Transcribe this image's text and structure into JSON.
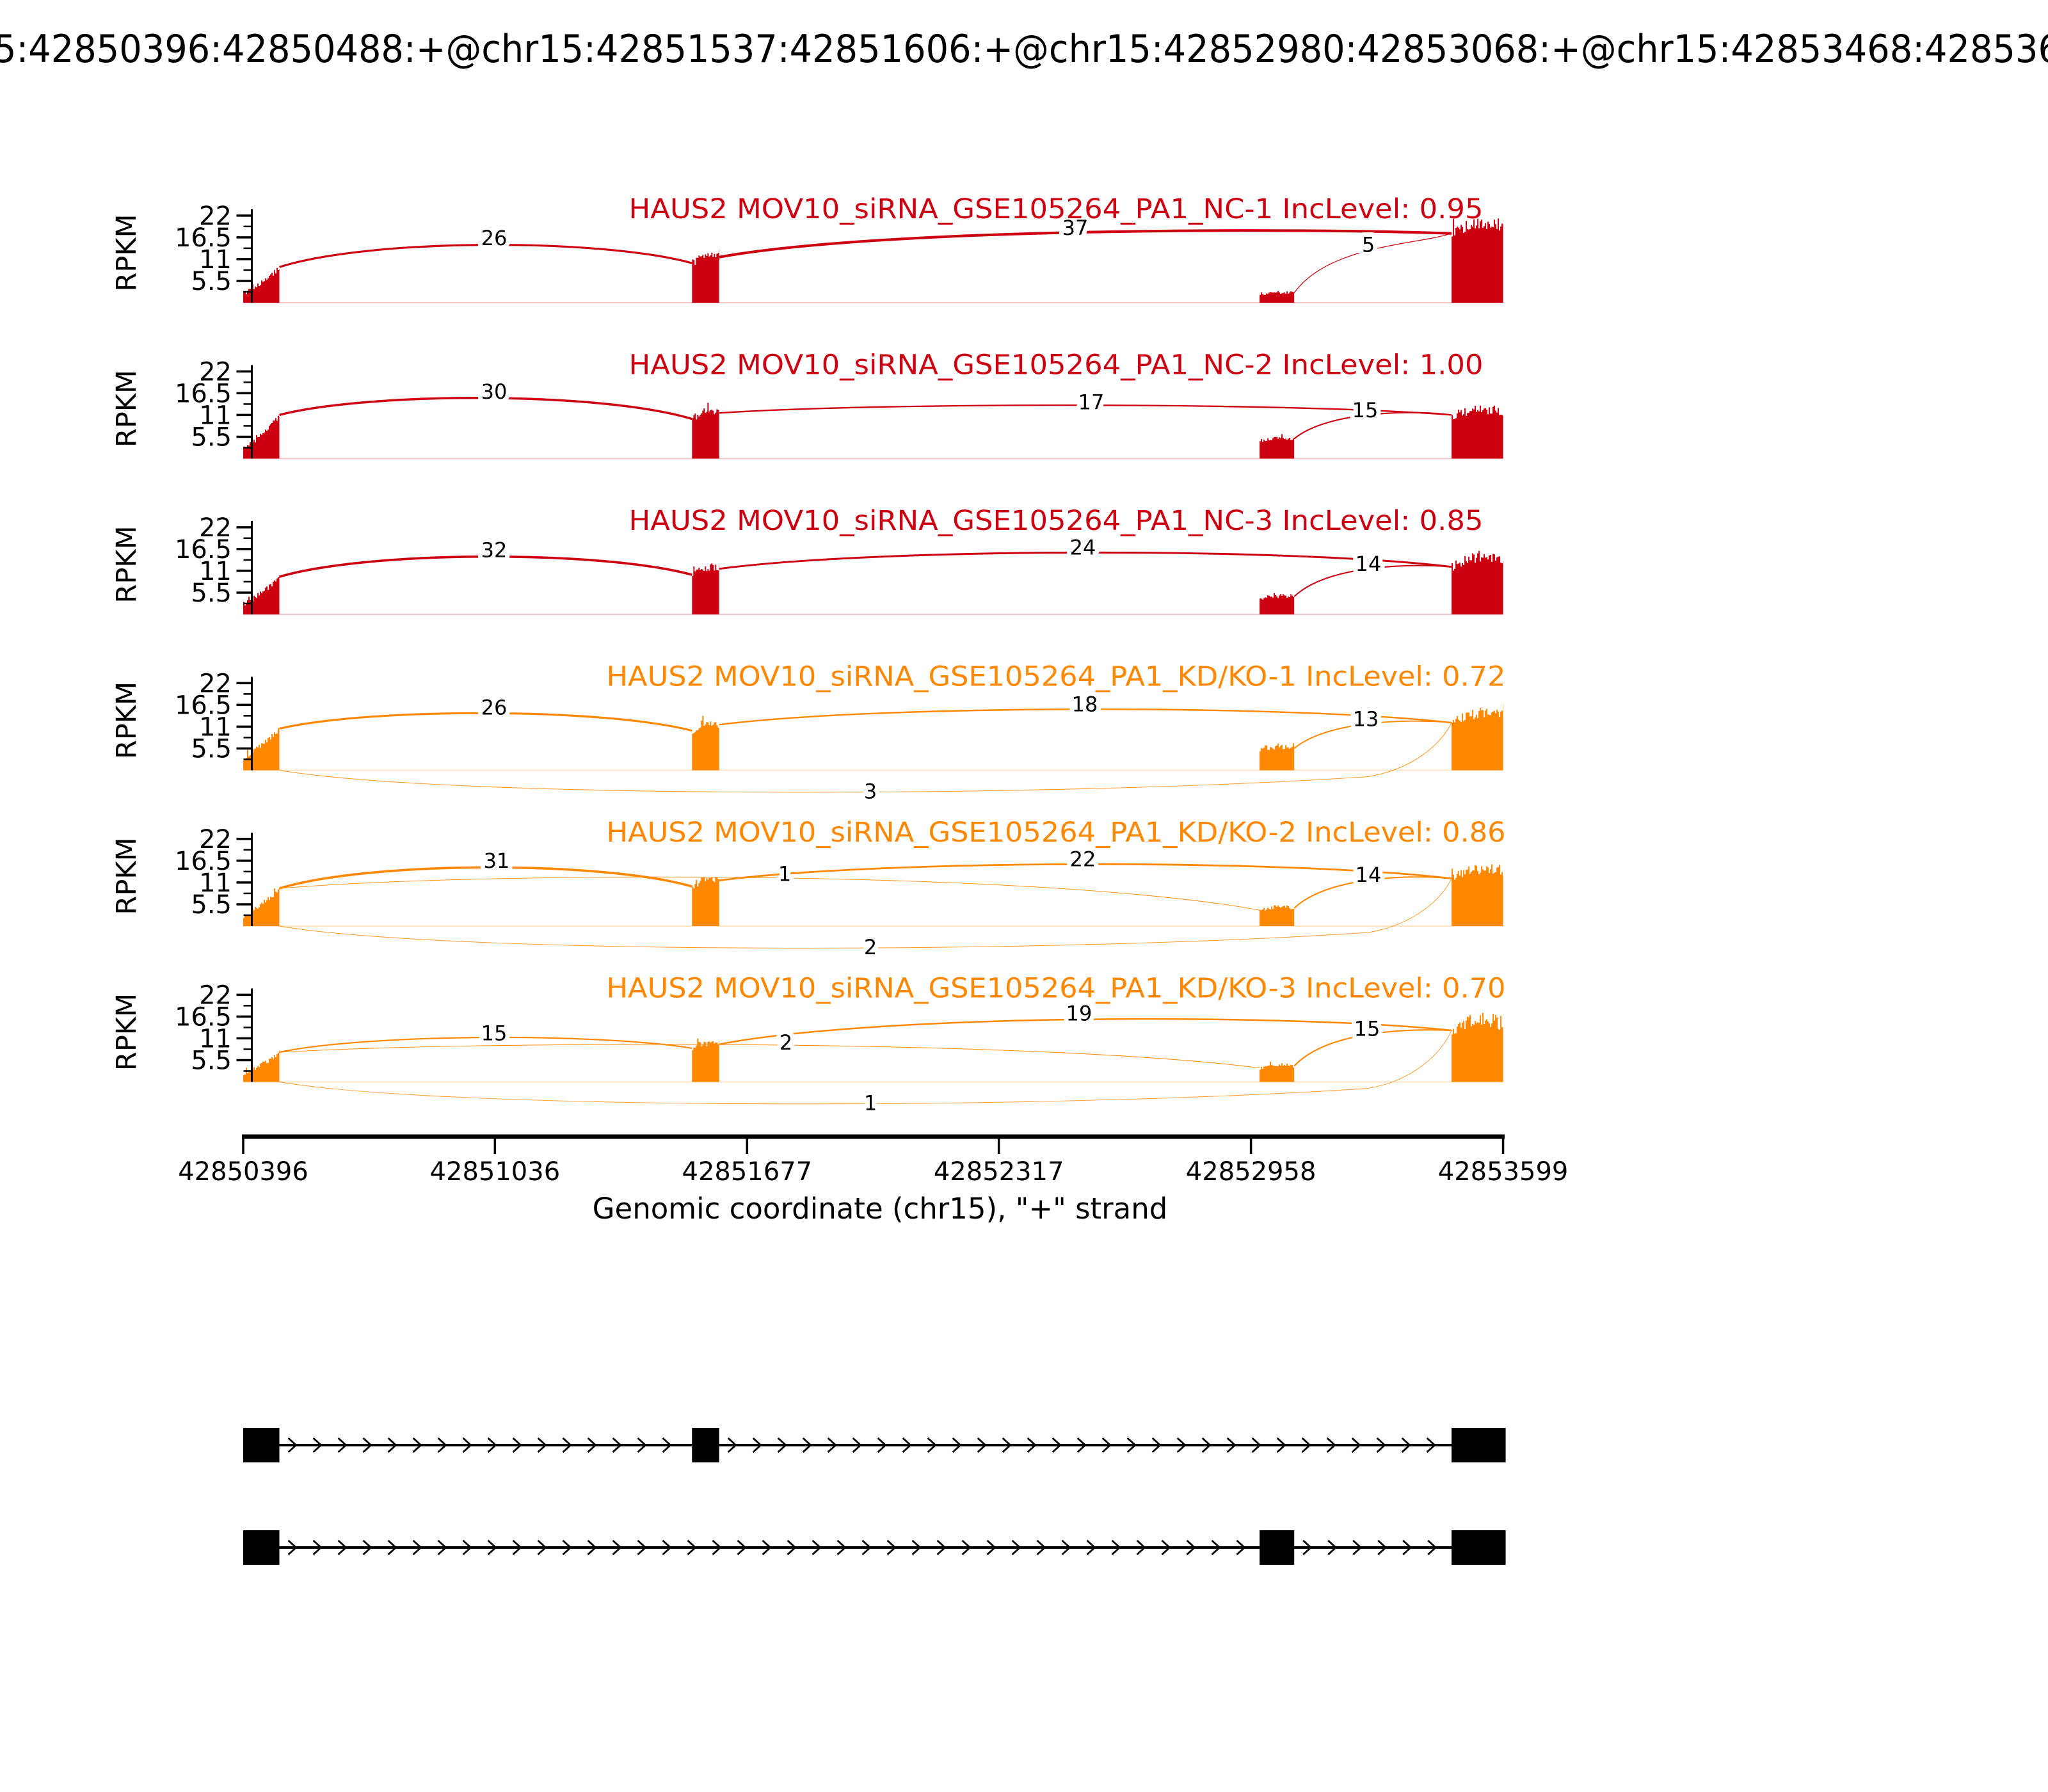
{
  "figure": {
    "top_title": "5:42850396:42850488:+@chr15:42851537:42851606:+@chr15:42852980:42853068:+@chr15:42853468:428536",
    "x_label": "Genomic coordinate (chr15), \"+\" strand",
    "y_label": "RPKM",
    "y_ticks": [
      "5.5",
      "11",
      "16.5",
      "22"
    ],
    "colors": {
      "nc": "#CC0011",
      "kd": "#FF8800"
    }
  },
  "chart_data": {
    "type": "sashimi",
    "gene": "HAUS2",
    "chromosome": "chr15",
    "strand": "+",
    "x_range": [
      42850396,
      42853599
    ],
    "x_ticks": [
      42850396,
      42851036,
      42851677,
      42852317,
      42852958,
      42853599
    ],
    "y_range_rpkm": [
      0,
      22
    ],
    "y_tick_values": [
      5.5,
      11,
      16.5,
      22
    ],
    "exons": {
      "e1": [
        42850396,
        42850488
      ],
      "e2": [
        42851537,
        42851606
      ],
      "e3": [
        42852980,
        42853068
      ],
      "e4": [
        42853468,
        42853599
      ]
    },
    "isoforms": [
      {
        "exons": [
          "e1",
          "e2",
          "e4"
        ]
      },
      {
        "exons": [
          "e1",
          "e3",
          "e4"
        ]
      }
    ],
    "tracks": [
      {
        "title": "HAUS2 MOV10_siRNA_GSE105264_PA1_NC-1 IncLevel: 0.95",
        "group": "nc",
        "inc_level": "0.95",
        "coverage_rpkm": {
          "e1": [
            2.5,
            4.5,
            9.0
          ],
          "e2": [
            10.0,
            13.0,
            11.5
          ],
          "e3": [
            2.2,
            2.9,
            2.5
          ],
          "e4": [
            17.5,
            21.0,
            19.5
          ]
        },
        "noise": {
          "e1": 0.7,
          "e2": 1.0,
          "e3": 0.4,
          "e4": 1.6
        },
        "junctions": [
          {
            "from": "e1",
            "to": "e2",
            "reads": 26,
            "apex": 16.3,
            "label_x": 772
          },
          {
            "from": "e2",
            "to": "e4",
            "reads": 37,
            "apex": 18.9,
            "label_x": 1680
          },
          {
            "from": "e3",
            "to": "e4",
            "reads": 5,
            "apex": 14.6,
            "label_x": 2138
          }
        ]
      },
      {
        "title": "HAUS2 MOV10_siRNA_GSE105264_PA1_NC-2 IncLevel: 1.00",
        "group": "nc",
        "inc_level": "1.00",
        "coverage_rpkm": {
          "e1": [
            2.5,
            5.5,
            11.0
          ],
          "e2": [
            10.0,
            13.0,
            11.5
          ],
          "e3": [
            4.5,
            5.6,
            5.0
          ],
          "e4": [
            11.0,
            13.0,
            12.0
          ]
        },
        "noise": {
          "e1": 0.7,
          "e2": 1.0,
          "e3": 0.5,
          "e4": 1.2
        },
        "junctions": [
          {
            "from": "e1",
            "to": "e2",
            "reads": 30,
            "apex": 16.9,
            "label_x": 772
          },
          {
            "from": "e2",
            "to": "e4",
            "reads": 17,
            "apex": 14.2,
            "label_x": 1705
          },
          {
            "from": "e3",
            "to": "e4",
            "reads": 15,
            "apex": 12.2,
            "label_x": 2133
          }
        ]
      },
      {
        "title": "HAUS2 MOV10_siRNA_GSE105264_PA1_NC-3 IncLevel: 0.85",
        "group": "nc",
        "inc_level": "0.85",
        "coverage_rpkm": {
          "e1": [
            2.5,
            5.0,
            9.5
          ],
          "e2": [
            10.0,
            13.0,
            11.5
          ],
          "e3": [
            4.0,
            5.0,
            4.5
          ],
          "e4": [
            12.0,
            15.5,
            14.0
          ]
        },
        "noise": {
          "e1": 0.7,
          "e2": 1.0,
          "e3": 0.5,
          "e4": 1.3
        },
        "junctions": [
          {
            "from": "e1",
            "to": "e2",
            "reads": 32,
            "apex": 16.2,
            "label_x": 772
          },
          {
            "from": "e2",
            "to": "e4",
            "reads": 24,
            "apex": 16.9,
            "label_x": 1692
          },
          {
            "from": "e3",
            "to": "e4",
            "reads": 14,
            "apex": 12.8,
            "label_x": 2138
          }
        ]
      },
      {
        "title": "HAUS2 MOV10_siRNA_GSE105264_PA1_KD/KO-1 IncLevel: 0.72",
        "group": "kd",
        "inc_level": "0.72",
        "coverage_rpkm": {
          "e1": [
            3.0,
            6.0,
            10.5
          ],
          "e2": [
            10.0,
            13.0,
            11.5
          ],
          "e3": [
            5.0,
            6.4,
            5.5
          ],
          "e4": [
            12.0,
            15.5,
            14.0
          ]
        },
        "noise": {
          "e1": 0.7,
          "e2": 1.0,
          "e3": 0.6,
          "e4": 1.3
        },
        "junctions": [
          {
            "from": "e1",
            "to": "e2",
            "reads": 26,
            "apex": 15.8,
            "label_x": 772
          },
          {
            "from": "e2",
            "to": "e4",
            "reads": 18,
            "apex": 16.6,
            "label_x": 1695
          },
          {
            "from": "e3",
            "to": "e4",
            "reads": 13,
            "apex": 12.9,
            "label_x": 2134
          },
          {
            "from": "e1",
            "to": "e4",
            "reads": 3,
            "below": true,
            "label_x": 1360
          }
        ]
      },
      {
        "title": "HAUS2 MOV10_siRNA_GSE105264_PA1_KD/KO-2 IncLevel: 0.86",
        "group": "kd",
        "inc_level": "0.86",
        "coverage_rpkm": {
          "e1": [
            2.5,
            5.0,
            9.5
          ],
          "e2": [
            10.0,
            13.0,
            11.5
          ],
          "e3": [
            4.0,
            5.4,
            4.5
          ],
          "e4": [
            12.0,
            15.5,
            14.0
          ]
        },
        "noise": {
          "e1": 0.7,
          "e2": 1.0,
          "e3": 0.5,
          "e4": 1.3
        },
        "junctions": [
          {
            "from": "e1",
            "to": "e2",
            "reads": 31,
            "apex": 16.5,
            "label_x": 776
          },
          {
            "from": "e1",
            "to": "e3",
            "reads": 1,
            "apex": 14.0,
            "label_x": 1226,
            "label_rpkm": 13.2
          },
          {
            "from": "e2",
            "to": "e4",
            "reads": 22,
            "apex": 16.9,
            "label_x": 1692
          },
          {
            "from": "e3",
            "to": "e4",
            "reads": 14,
            "apex": 12.9,
            "label_x": 2138
          },
          {
            "from": "e1",
            "to": "e4",
            "reads": 2,
            "below": true,
            "label_x": 1360
          }
        ]
      },
      {
        "title": "HAUS2 MOV10_siRNA_GSE105264_PA1_KD/KO-3 IncLevel: 0.70",
        "group": "kd",
        "inc_level": "0.70",
        "coverage_rpkm": {
          "e1": [
            2.0,
            4.0,
            7.5
          ],
          "e2": [
            8.5,
            10.5,
            9.5
          ],
          "e3": [
            3.5,
            4.8,
            4.0
          ],
          "e4": [
            13.0,
            18.0,
            14.0
          ]
        },
        "noise": {
          "e1": 0.6,
          "e2": 0.9,
          "e3": 0.5,
          "e4": 1.6
        },
        "junctions": [
          {
            "from": "e1",
            "to": "e2",
            "reads": 15,
            "apex": 12.3,
            "label_x": 772
          },
          {
            "from": "e1",
            "to": "e3",
            "reads": 2,
            "apex": 10.6,
            "label_x": 1228,
            "label_rpkm": 9.9
          },
          {
            "from": "e2",
            "to": "e4",
            "reads": 19,
            "apex": 17.3,
            "label_x": 1686
          },
          {
            "from": "e3",
            "to": "e4",
            "reads": 15,
            "apex": 13.4,
            "label_x": 2136
          },
          {
            "from": "e1",
            "to": "e4",
            "reads": 1,
            "below": true,
            "label_x": 1360
          }
        ]
      }
    ]
  }
}
